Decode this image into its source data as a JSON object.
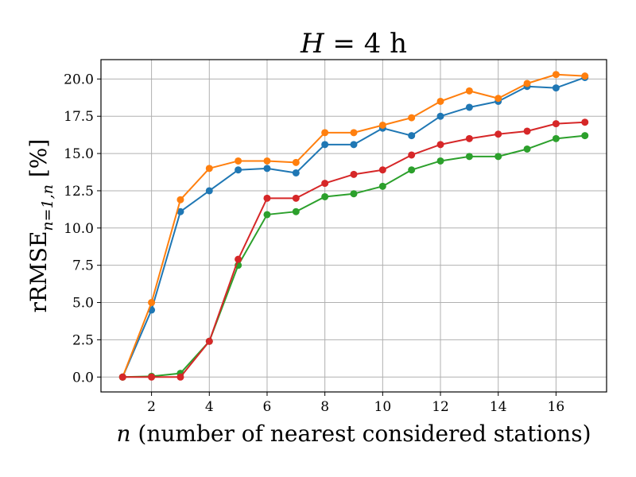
{
  "chart_data": {
    "type": "line",
    "title": "H = 4 h",
    "title_parts": {
      "var": "H",
      "rest": " = 4 h"
    },
    "xlabel": "n (number of nearest considered stations)",
    "xlabel_parts": {
      "var": "n",
      "rest": " (number of nearest considered stations)"
    },
    "ylabel": "rRMSE_{n=1,n} [%]",
    "ylabel_parts": {
      "base": "rRMSE",
      "sub": "n=1,n",
      "rest": " [%]"
    },
    "xlim": [
      0.25,
      17.75
    ],
    "ylim": [
      -1.0,
      21.3
    ],
    "xticks": [
      2,
      4,
      6,
      8,
      10,
      12,
      14,
      16
    ],
    "yticks": [
      0.0,
      2.5,
      5.0,
      7.5,
      10.0,
      12.5,
      15.0,
      17.5,
      20.0
    ],
    "ytick_labels": [
      "0.0",
      "2.5",
      "5.0",
      "7.5",
      "10.0",
      "12.5",
      "15.0",
      "17.5",
      "20.0"
    ],
    "grid": true,
    "x": [
      1,
      2,
      3,
      4,
      5,
      6,
      7,
      8,
      9,
      10,
      11,
      12,
      13,
      14,
      15,
      16,
      17
    ],
    "series": [
      {
        "color": "#1f77b4",
        "values": [
          0.0,
          4.5,
          11.1,
          12.5,
          13.9,
          14.0,
          13.7,
          15.6,
          15.6,
          16.7,
          16.2,
          17.5,
          18.1,
          18.5,
          19.5,
          19.4,
          20.1
        ]
      },
      {
        "color": "#ff7f0e",
        "values": [
          0.0,
          5.0,
          11.9,
          14.0,
          14.5,
          14.5,
          14.4,
          16.4,
          16.4,
          16.9,
          17.4,
          18.5,
          19.2,
          18.7,
          19.7,
          20.3,
          20.2
        ]
      },
      {
        "color": "#2ca02c",
        "values": [
          0.0,
          0.05,
          0.25,
          2.4,
          7.5,
          10.9,
          11.1,
          12.1,
          12.3,
          12.8,
          13.9,
          14.5,
          14.8,
          14.8,
          15.3,
          16.0,
          16.2
        ]
      },
      {
        "color": "#d62728",
        "values": [
          0.0,
          0.0,
          0.0,
          2.4,
          7.9,
          12.0,
          12.0,
          13.0,
          13.6,
          13.9,
          14.9,
          15.6,
          16.0,
          16.3,
          16.5,
          17.0,
          17.1
        ]
      }
    ]
  }
}
